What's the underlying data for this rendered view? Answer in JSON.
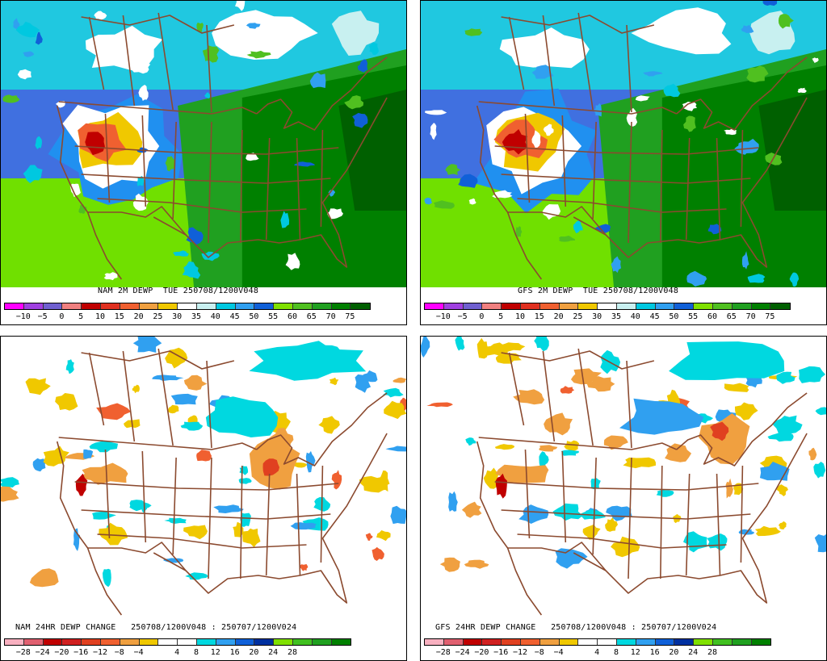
{
  "panels": [
    {
      "id": "nam-dewp",
      "caption": "NAM 2M DEWP  TUE 250708/1200V048",
      "scale": "dewpoint"
    },
    {
      "id": "gfs-dewp",
      "caption": "GFS 2M DEWP  TUE 250708/1200V048",
      "scale": "dewpoint"
    },
    {
      "id": "nam-change",
      "caption": "NAM 24HR DEWP CHANGE   250708/1200V048 : 250707/1200V024",
      "scale": "change"
    },
    {
      "id": "gfs-change",
      "caption": "GFS 24HR DEWP CHANGE   250708/1200V048 : 250707/1200V024",
      "scale": "change"
    }
  ],
  "scales": {
    "dewpoint": {
      "colors": [
        "#ff00ff",
        "#a040e0",
        "#7060d0",
        "#f08080",
        "#c00000",
        "#e03020",
        "#f06030",
        "#f0a040",
        "#f0c800",
        "#ffffff",
        "#c8f0f0",
        "#00c8e0",
        "#30a0f0",
        "#1060d8",
        "#80e000",
        "#50c020",
        "#20a020",
        "#008000",
        "#006000"
      ],
      "labels": [
        "-10",
        "-5",
        "0",
        "5",
        "10",
        "15",
        "20",
        "25",
        "30",
        "35",
        "40",
        "45",
        "50",
        "55",
        "60",
        "65",
        "70",
        "75"
      ]
    },
    "change": {
      "colors": [
        "#f8b0c0",
        "#e06070",
        "#c00000",
        "#d02020",
        "#e04020",
        "#f06030",
        "#f0a040",
        "#f0c800",
        "#ffffff",
        "#ffffff",
        "#00d8e0",
        "#30a0f0",
        "#1060d8",
        "#0030a0",
        "#80e000",
        "#40c020",
        "#20a020",
        "#008000"
      ],
      "labels": [
        "-28",
        "-24",
        "-20",
        "-16",
        "-12",
        "-8",
        "-4",
        "4",
        "8",
        "12",
        "16",
        "20",
        "24",
        "28"
      ]
    }
  },
  "colors": {
    "borders": "#8b4a2f",
    "panel_border": "#000000"
  }
}
